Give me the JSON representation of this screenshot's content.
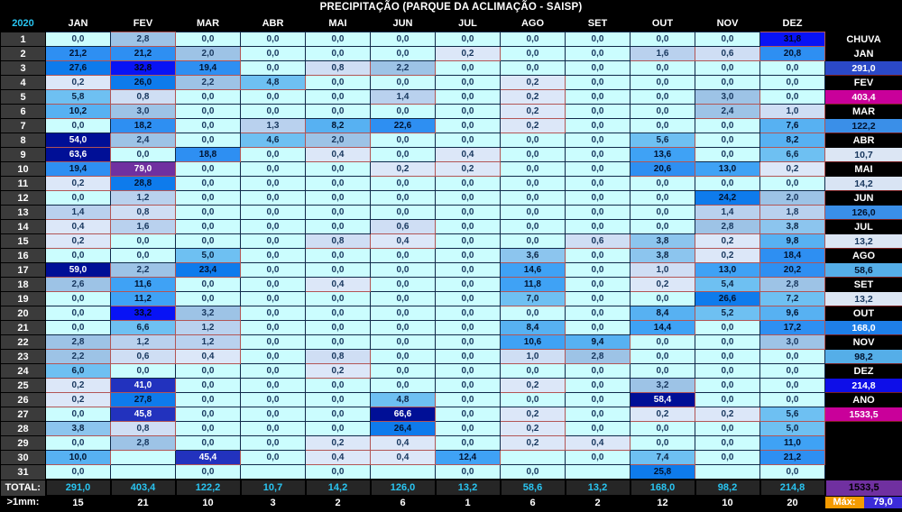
{
  "title": "PRECIPITAÇÃO (PARQUE DA ACLIMAÇÃO - SAISP)",
  "chart_data": {
    "type": "table",
    "title": "PRECIPITAÇÃO (PARQUE DA ACLIMAÇÃO - SAISP)",
    "year": "2020",
    "unit": "mm",
    "months": [
      "JAN",
      "FEV",
      "MAR",
      "ABR",
      "MAI",
      "JUN",
      "JUL",
      "AGO",
      "SET",
      "OUT",
      "NOV",
      "DEZ"
    ],
    "days": [
      {
        "day": "1",
        "values": [
          "0,0",
          "2,8",
          "0,0",
          "0,0",
          "0,0",
          "0,0",
          "0,0",
          "0,0",
          "0,0",
          "0,0",
          "0,0",
          "31,8"
        ]
      },
      {
        "day": "2",
        "values": [
          "21,2",
          "21,2",
          "2,0",
          "0,0",
          "0,0",
          "0,0",
          "0,2",
          "0,0",
          "0,0",
          "1,6",
          "0,6",
          "20,8"
        ]
      },
      {
        "day": "3",
        "values": [
          "27,6",
          "32,8",
          "19,4",
          "0,0",
          "0,8",
          "2,2",
          "0,0",
          "0,0",
          "0,0",
          "0,0",
          "0,0",
          "0,0"
        ]
      },
      {
        "day": "4",
        "values": [
          "0,2",
          "26,0",
          "2,2",
          "4,8",
          "0,0",
          "0,0",
          "0,0",
          "0,2",
          "0,0",
          "0,0",
          "0,0",
          "0,0"
        ]
      },
      {
        "day": "5",
        "values": [
          "5,8",
          "0,8",
          "0,0",
          "0,0",
          "0,0",
          "1,4",
          "0,0",
          "0,2",
          "0,0",
          "0,0",
          "3,0",
          "0,0"
        ]
      },
      {
        "day": "6",
        "values": [
          "10,2",
          "3,0",
          "0,0",
          "0,0",
          "0,0",
          "0,0",
          "0,0",
          "0,2",
          "0,0",
          "0,0",
          "2,4",
          "1,0"
        ]
      },
      {
        "day": "7",
        "values": [
          "0,0",
          "18,2",
          "0,0",
          "1,3",
          "8,2",
          "22,6",
          "0,0",
          "0,2",
          "0,0",
          "0,0",
          "0,0",
          "7,6"
        ]
      },
      {
        "day": "8",
        "values": [
          "54,0",
          "2,4",
          "0,0",
          "4,6",
          "2,0",
          "0,0",
          "0,0",
          "0,0",
          "0,0",
          "5,6",
          "0,0",
          "8,2"
        ]
      },
      {
        "day": "9",
        "values": [
          "63,6",
          "0,0",
          "18,8",
          "0,0",
          "0,4",
          "0,0",
          "0,4",
          "0,0",
          "0,0",
          "13,6",
          "0,0",
          "6,6"
        ]
      },
      {
        "day": "10",
        "values": [
          "19,4",
          "79,0",
          "0,0",
          "0,0",
          "0,0",
          "0,2",
          "0,2",
          "0,0",
          "0,0",
          "20,6",
          "13,0",
          "0,2"
        ]
      },
      {
        "day": "11",
        "values": [
          "0,2",
          "28,8",
          "0,0",
          "0,0",
          "0,0",
          "0,0",
          "0,0",
          "0,0",
          "0,0",
          "0,0",
          "0,0",
          "0,0"
        ]
      },
      {
        "day": "12",
        "values": [
          "0,0",
          "1,2",
          "0,0",
          "0,0",
          "0,0",
          "0,0",
          "0,0",
          "0,0",
          "0,0",
          "0,0",
          "24,2",
          "2,0"
        ]
      },
      {
        "day": "13",
        "values": [
          "1,4",
          "0,8",
          "0,0",
          "0,0",
          "0,0",
          "0,0",
          "0,0",
          "0,0",
          "0,0",
          "0,0",
          "1,4",
          "1,8"
        ]
      },
      {
        "day": "14",
        "values": [
          "0,4",
          "1,6",
          "0,0",
          "0,0",
          "0,0",
          "0,6",
          "0,0",
          "0,0",
          "0,0",
          "0,0",
          "2,8",
          "3,8"
        ]
      },
      {
        "day": "15",
        "values": [
          "0,2",
          "0,0",
          "0,0",
          "0,0",
          "0,8",
          "0,4",
          "0,0",
          "0,0",
          "0,6",
          "3,8",
          "0,2",
          "9,8"
        ]
      },
      {
        "day": "16",
        "values": [
          "0,0",
          "0,0",
          "5,0",
          "0,0",
          "0,0",
          "0,0",
          "0,0",
          "3,6",
          "0,0",
          "3,8",
          "0,2",
          "18,4"
        ]
      },
      {
        "day": "17",
        "values": [
          "59,0",
          "2,2",
          "23,4",
          "0,0",
          "0,0",
          "0,0",
          "0,0",
          "14,6",
          "0,0",
          "1,0",
          "13,0",
          "20,2"
        ]
      },
      {
        "day": "18",
        "values": [
          "2,6",
          "11,6",
          "0,0",
          "0,0",
          "0,4",
          "0,0",
          "0,0",
          "11,8",
          "0,0",
          "0,2",
          "5,4",
          "2,8"
        ]
      },
      {
        "day": "19",
        "values": [
          "0,0",
          "11,2",
          "0,0",
          "0,0",
          "0,0",
          "0,0",
          "0,0",
          "7,0",
          "0,0",
          "0,0",
          "26,6",
          "7,2"
        ]
      },
      {
        "day": "20",
        "values": [
          "0,0",
          "33,2",
          "3,2",
          "0,0",
          "0,0",
          "0,0",
          "0,0",
          "0,0",
          "0,0",
          "8,4",
          "5,2",
          "9,6"
        ]
      },
      {
        "day": "21",
        "values": [
          "0,0",
          "6,6",
          "1,2",
          "0,0",
          "0,0",
          "0,0",
          "0,0",
          "8,4",
          "0,0",
          "14,4",
          "0,0",
          "17,2"
        ]
      },
      {
        "day": "22",
        "values": [
          "2,8",
          "1,2",
          "1,2",
          "0,0",
          "0,0",
          "0,0",
          "0,0",
          "10,6",
          "9,4",
          "0,0",
          "0,0",
          "3,0"
        ]
      },
      {
        "day": "23",
        "values": [
          "2,2",
          "0,6",
          "0,4",
          "0,0",
          "0,8",
          "0,0",
          "0,0",
          "1,0",
          "2,8",
          "0,0",
          "0,0",
          "0,0"
        ]
      },
      {
        "day": "24",
        "values": [
          "6,0",
          "0,0",
          "0,0",
          "0,0",
          "0,2",
          "0,0",
          "0,0",
          "0,0",
          "0,0",
          "0,0",
          "0,0",
          "0,0"
        ]
      },
      {
        "day": "25",
        "values": [
          "0,2",
          "41,0",
          "0,0",
          "0,0",
          "0,0",
          "0,0",
          "0,0",
          "0,2",
          "0,0",
          "3,2",
          "0,0",
          "0,0"
        ]
      },
      {
        "day": "26",
        "values": [
          "0,2",
          "27,8",
          "0,0",
          "0,0",
          "0,0",
          "4,8",
          "0,0",
          "0,0",
          "0,0",
          "58,4",
          "0,0",
          "0,0"
        ]
      },
      {
        "day": "27",
        "values": [
          "0,0",
          "45,8",
          "0,0",
          "0,0",
          "0,0",
          "66,6",
          "0,0",
          "0,2",
          "0,0",
          "0,2",
          "0,2",
          "5,6"
        ]
      },
      {
        "day": "28",
        "values": [
          "3,8",
          "0,8",
          "0,0",
          "0,0",
          "0,0",
          "26,4",
          "0,0",
          "0,2",
          "0,0",
          "0,0",
          "0,0",
          "5,0"
        ]
      },
      {
        "day": "29",
        "values": [
          "0,0",
          "2,8",
          "0,0",
          "0,0",
          "0,2",
          "0,4",
          "0,0",
          "0,2",
          "0,4",
          "0,0",
          "0,0",
          "11,0"
        ]
      },
      {
        "day": "30",
        "values": [
          "10,0",
          null,
          "45,4",
          "0,0",
          "0,4",
          "0,4",
          "12,4",
          null,
          "0,0",
          "7,4",
          "0,0",
          "21,2"
        ]
      },
      {
        "day": "31",
        "values": [
          "0,0",
          null,
          "0,0",
          null,
          "0,0",
          null,
          "0,0",
          "0,0",
          null,
          "25,8",
          null,
          "0,0"
        ]
      }
    ],
    "totals": {
      "label": "TOTAL:",
      "values": [
        "291,0",
        "403,4",
        "122,2",
        "10,7",
        "14,2",
        "126,0",
        "13,2",
        "58,6",
        "13,2",
        "168,0",
        "98,2",
        "214,8"
      ],
      "year_total": "1533,5",
      "year_total_bg": "#7030A0"
    },
    "gt1mm": {
      "label": ">1mm:",
      "values": [
        "15",
        "21",
        "10",
        "3",
        "2",
        "6",
        "1",
        "6",
        "2",
        "12",
        "10",
        "20"
      ],
      "max_label": "Máx:",
      "max_value": "79,0",
      "max_label_bg": "#F59B00",
      "max_value_bg": "#3B2BD9"
    },
    "sidebar": {
      "header": "CHUVA",
      "entries": [
        {
          "month": "JAN",
          "value": "291,0",
          "bg": "#2B49C8",
          "fg": "#FFFFFF"
        },
        {
          "month": "FEV",
          "value": "403,4",
          "bg": "#C9009A",
          "fg": "#FFFFFF"
        },
        {
          "month": "MAR",
          "value": "122,2",
          "bg": "#3A8FE8",
          "fg": "#00122E"
        },
        {
          "month": "ABR",
          "value": "10,7",
          "bg": "#DCE6F4",
          "fg": "#17365D"
        },
        {
          "month": "MAI",
          "value": "14,2",
          "bg": "#D9E4F4",
          "fg": "#17365D"
        },
        {
          "month": "JUN",
          "value": "126,0",
          "bg": "#3A8FE8",
          "fg": "#00122E"
        },
        {
          "month": "JUL",
          "value": "13,2",
          "bg": "#DCE6F4",
          "fg": "#17365D"
        },
        {
          "month": "AGO",
          "value": "58,6",
          "bg": "#55AEE8",
          "fg": "#00122E"
        },
        {
          "month": "SET",
          "value": "13,2",
          "bg": "#DCE6F4",
          "fg": "#17365D"
        },
        {
          "month": "OUT",
          "value": "168,0",
          "bg": "#1E7FE8",
          "fg": "#FFFFFF"
        },
        {
          "month": "NOV",
          "value": "98,2",
          "bg": "#55AEE8",
          "fg": "#00122E"
        },
        {
          "month": "DEZ",
          "value": "214,8",
          "bg": "#0E0EE8",
          "fg": "#FFFFFF"
        },
        {
          "month": "ANO",
          "value": "1533,5",
          "bg": "#C9009A",
          "fg": "#FFFFFF"
        }
      ]
    },
    "colors": {
      "zero_bg": "#CBFDFE",
      "default_fg": "#17365D",
      "scale": [
        {
          "min": 70,
          "bg": "#7030A0",
          "fg": "#FFFFFF"
        },
        {
          "min": 50,
          "bg": "#000F96",
          "fg": "#FFFFFF"
        },
        {
          "min": 37,
          "bg": "#2232BE",
          "fg": "#FFFFFF"
        },
        {
          "min": 30,
          "bg": "#0813F5",
          "fg": "#000814"
        },
        {
          "min": 23,
          "bg": "#0E7BEC",
          "fg": "#00122E"
        },
        {
          "min": 15,
          "bg": "#2E8FF2",
          "fg": "#00122E"
        },
        {
          "min": 10.5,
          "bg": "#3FA2F5",
          "fg": "#00122E"
        },
        {
          "min": 7.5,
          "bg": "#57B1F2",
          "fg": "#00122E"
        },
        {
          "min": 4.5,
          "bg": "#6EC0F2",
          "fg": "#0B2545"
        },
        {
          "min": 3.5,
          "bg": "#8CC5EE",
          "fg": "#0B2545"
        },
        {
          "min": 2.0,
          "bg": "#9DC3E6",
          "fg": "#17365D"
        },
        {
          "min": 1.1,
          "bg": "#B9D1EE",
          "fg": "#17365D"
        },
        {
          "min": 0.5,
          "bg": "#CFDEF4",
          "fg": "#17365D"
        },
        {
          "min": 0.01,
          "bg": "#DCE7F8",
          "fg": "#17365D"
        }
      ]
    }
  }
}
